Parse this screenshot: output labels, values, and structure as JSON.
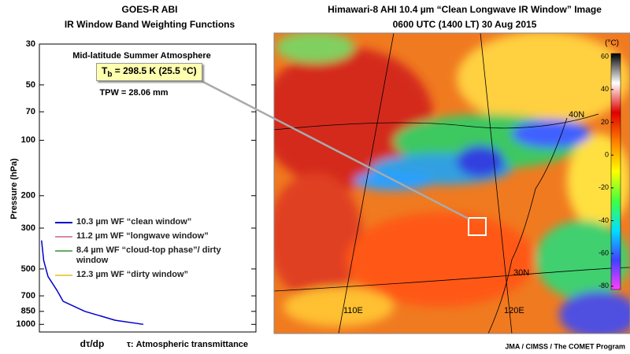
{
  "chart_data": [
    {
      "type": "line",
      "title": "GOES-R ABI",
      "subtitle": "IR Window Band Weighting Functions",
      "annotation": "Mid-latitude Summer Atmosphere",
      "tb_symbol": "T",
      "tb_subscript": "b",
      "tb_text": " = 298.5 K (25.5 °C)",
      "tpw": "TPW = 28.06 mm",
      "ylabel": "Pressure (hPa)",
      "xlabel": "dτ/dp",
      "xlabel_note": "τ: Atmospheric transmittance",
      "yscale": "log",
      "yinverted": true,
      "ylim": [
        30,
        1100
      ],
      "yticks": [
        30,
        50,
        70,
        100,
        200,
        300,
        500,
        700,
        850,
        1000
      ],
      "xlim": [
        0,
        1
      ],
      "y": [
        350,
        450,
        550,
        650,
        750,
        850,
        950,
        1000
      ],
      "series": [
        {
          "name": "10.3 µm WF “clean window”",
          "color": "#0000cc",
          "values": [
            0.01,
            0.02,
            0.04,
            0.08,
            0.11,
            0.21,
            0.35,
            0.48
          ]
        },
        {
          "name": "11.2 µm WF “longwave window”",
          "color": "#d98b9b",
          "values": [
            null,
            null,
            null,
            null,
            null,
            null,
            null,
            null
          ]
        },
        {
          "name": "8.4 µm WF “cloud-top phase”/ dirty window",
          "color": "#66aa66",
          "values": [
            null,
            null,
            null,
            null,
            null,
            null,
            null,
            null
          ]
        },
        {
          "name": "12.3 µm WF “dirty window”",
          "color": "#f0cc55",
          "values": [
            null,
            null,
            null,
            null,
            null,
            null,
            null,
            null
          ]
        }
      ]
    },
    {
      "type": "image",
      "title": "Himawari-8 AHI 10.4 µm “Clean Longwave IR Window” Image",
      "subtitle": "0600 UTC (1400 LT)  30 Aug 2015",
      "colorbar_label": "(°C)",
      "ylim": [
        -82,
        62
      ],
      "yticks": [
        60,
        40,
        20,
        0,
        -20,
        -40,
        -60,
        -80
      ],
      "colors": [
        "#ff40ff",
        "#4040ff",
        "#00e0ff",
        "#40ff40",
        "#ffff00",
        "#ff8000",
        "#e00000",
        "#ffffff",
        "#000000"
      ],
      "map_labels": [
        "40N",
        "30N",
        "110E",
        "120E"
      ],
      "credit": "JMA / CIMSS / The COMET Program"
    }
  ]
}
